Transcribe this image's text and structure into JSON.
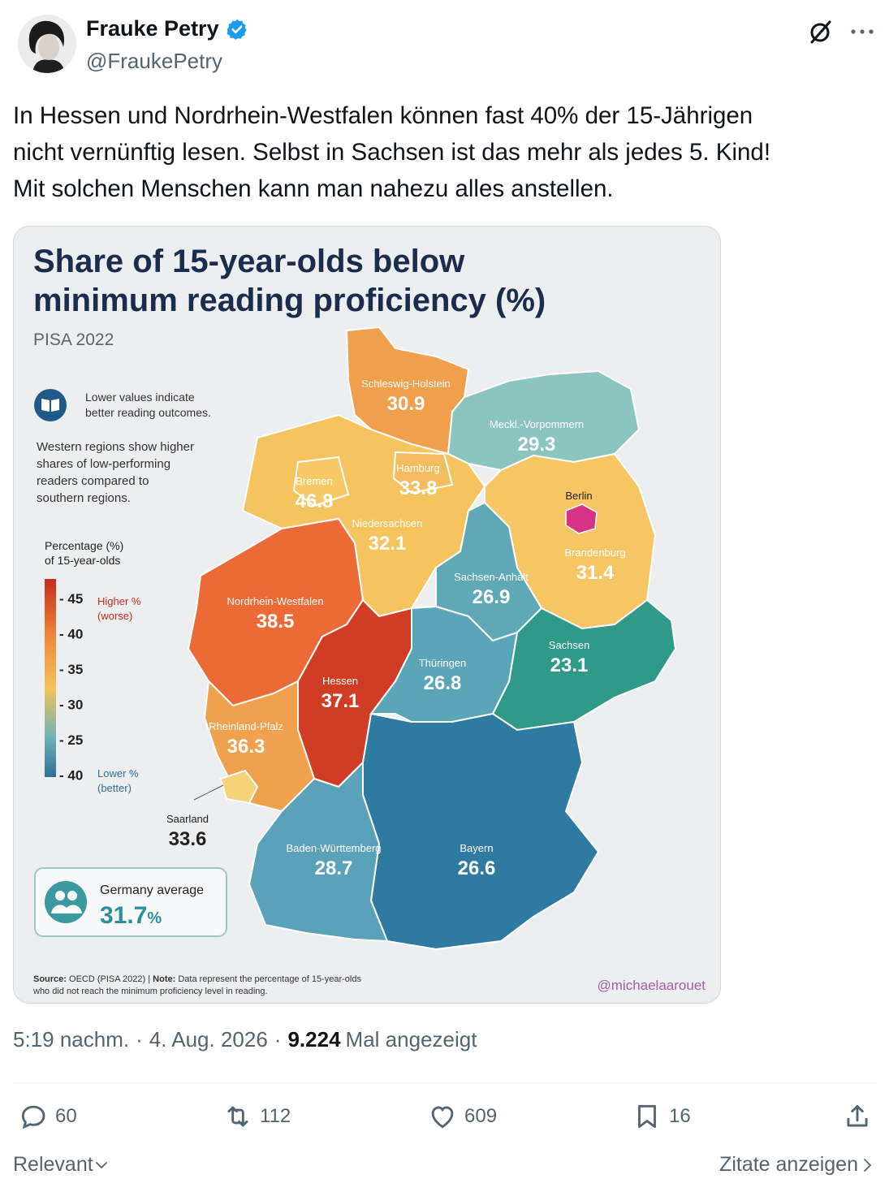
{
  "author": {
    "name": "Frauke Petry",
    "handle": "@FraukePetry",
    "verified_color": "#1d9bf0"
  },
  "tweet": {
    "lines": [
      "In Hessen und Nordrhein-Westfalen können fast 40% der 15-Jährigen",
      "nicht vernünftig lesen. Selbst in Sachsen ist das mehr als jedes 5. Kind!",
      "Mit solchen Menschen kann man nahezu alles anstellen."
    ]
  },
  "infographic": {
    "title_line1": "Share of 15-year-olds below",
    "title_line2": "minimum reading proficiency (%)",
    "subtitle": "PISA 2022",
    "note_line1": "Lower values indicate",
    "note_line2": "better reading outcomes.",
    "desc_lines": [
      "Western regions show higher",
      "shares of low-performing",
      "readers compared to",
      "southern regions."
    ],
    "legend_title_line1": "Percentage (%)",
    "legend_title_line2": "of 15-year-olds",
    "legend_ticks": [
      "- 45",
      "- 40",
      "- 35",
      "- 30",
      "- 25",
      "- 40"
    ],
    "legend_high_line1": "Higher %",
    "legend_high_line2": "(worse)",
    "legend_low_line1": "Lower %",
    "legend_low_line2": "(better)",
    "avg_label": "Germany average",
    "avg_value": "31.7",
    "avg_unit": "%",
    "source_label": "Source:",
    "source_text": "OECD (PISA 2022)",
    "note_label": "Note:",
    "note_text_1": "Data represent the percentage of 15-year-olds",
    "note_text_2": "who did not reach the minimum proficiency level in reading.",
    "credit": "@michaelaarouet"
  },
  "chart_data": {
    "type": "choropleth",
    "title": "Share of 15-year-olds below minimum reading proficiency (%)",
    "subtitle": "PISA 2022",
    "regions": [
      {
        "name": "Schleswig-Holstein",
        "value": "30.9"
      },
      {
        "name": "Meckl.-Vorpommern",
        "value": "29.3"
      },
      {
        "name": "Hamburg",
        "value": "33.8"
      },
      {
        "name": "Bremen",
        "value": "46.8"
      },
      {
        "name": "Berlin",
        "value": ""
      },
      {
        "name": "Niedersachsen",
        "value": "32.1"
      },
      {
        "name": "Brandenburg",
        "value": "31.4"
      },
      {
        "name": "Sachsen-Anhalt",
        "value": "26.9"
      },
      {
        "name": "Nordrhein-Westfalen",
        "value": "38.5"
      },
      {
        "name": "Sachsen",
        "value": "23.1"
      },
      {
        "name": "Hessen",
        "value": "37.1"
      },
      {
        "name": "Thüringen",
        "value": "26.8"
      },
      {
        "name": "Rheinland-Pfalz",
        "value": "36.3"
      },
      {
        "name": "Saarland",
        "value": "33.6"
      },
      {
        "name": "Baden-Württemberg",
        "value": "28.7"
      },
      {
        "name": "Bayern",
        "value": "26.6"
      }
    ],
    "germany_average": 31.7,
    "colors": {
      "high": "#c62a1f",
      "mid": "#f4c25a",
      "low": "#2f7fa3",
      "berlin": "#d63384"
    }
  },
  "meta": {
    "time": "5:19 nachm.",
    "date": "4. Aug. 2026",
    "views": "9.224",
    "views_label": "Mal angezeigt"
  },
  "actions": {
    "replies": "60",
    "reposts": "112",
    "likes": "609",
    "bookmarks": "16"
  },
  "footer": {
    "sort": "Relevant",
    "quotes": "Zitate anzeigen"
  }
}
